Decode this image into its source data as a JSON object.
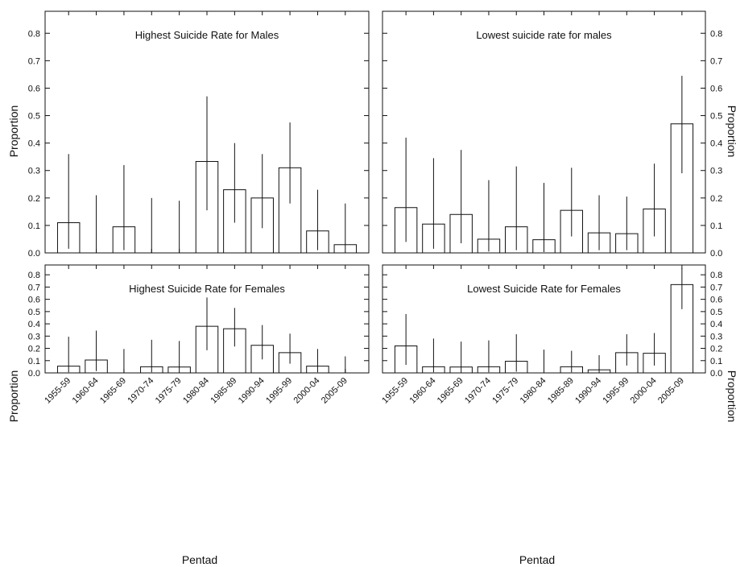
{
  "figure": {
    "left_ylabel": "Proportion",
    "right_ylabel": "Proportion",
    "xlabel": "Pentad"
  },
  "chart_data": [
    {
      "type": "bar",
      "title": "Highest Suicide Rate for Males",
      "categories": [
        "1955-59",
        "1960-64",
        "1965-69",
        "1970-74",
        "1975-79",
        "1980-84",
        "1985-89",
        "1990-94",
        "1995-99",
        "2000-04",
        "2005-09"
      ],
      "values": [
        0.11,
        0.0,
        0.095,
        0.0,
        0.0,
        0.333,
        0.23,
        0.2,
        0.31,
        0.08,
        0.03
      ],
      "error_low": [
        0.015,
        0.0,
        0.01,
        0.0,
        0.0,
        0.155,
        0.11,
        0.09,
        0.18,
        0.01,
        0.0
      ],
      "error_high": [
        0.36,
        0.21,
        0.32,
        0.2,
        0.19,
        0.57,
        0.4,
        0.36,
        0.475,
        0.23,
        0.18
      ],
      "ylim": [
        0,
        0.88
      ],
      "yticks": [
        0.0,
        0.1,
        0.2,
        0.3,
        0.4,
        0.5,
        0.6,
        0.7,
        0.8
      ],
      "ylabel": "Proportion",
      "xlabel": ""
    },
    {
      "type": "bar",
      "title": "Lowest suicide rate for males",
      "categories": [
        "1955-59",
        "1960-64",
        "1965-69",
        "1970-74",
        "1975-79",
        "1980-84",
        "1985-89",
        "1990-94",
        "1995-99",
        "2000-04",
        "2005-09"
      ],
      "values": [
        0.165,
        0.105,
        0.14,
        0.05,
        0.095,
        0.048,
        0.155,
        0.073,
        0.07,
        0.16,
        0.47
      ],
      "error_low": [
        0.04,
        0.015,
        0.035,
        0.005,
        0.01,
        0.003,
        0.06,
        0.01,
        0.01,
        0.06,
        0.29
      ],
      "error_high": [
        0.42,
        0.345,
        0.375,
        0.265,
        0.315,
        0.255,
        0.31,
        0.21,
        0.205,
        0.325,
        0.645
      ],
      "ylim": [
        0,
        0.88
      ],
      "yticks": [
        0.0,
        0.1,
        0.2,
        0.3,
        0.4,
        0.5,
        0.6,
        0.7,
        0.8
      ],
      "ylabel": "Proportion",
      "xlabel": ""
    },
    {
      "type": "bar",
      "title": "Highest Suicide Rate for Females",
      "categories": [
        "1955-59",
        "1960-64",
        "1965-69",
        "1970-74",
        "1975-79",
        "1980-84",
        "1985-89",
        "1990-94",
        "1995-99",
        "2000-04",
        "2005-09"
      ],
      "values": [
        0.055,
        0.105,
        0.0,
        0.05,
        0.048,
        0.38,
        0.36,
        0.225,
        0.165,
        0.055,
        0.0
      ],
      "error_low": [
        0.005,
        0.015,
        0.0,
        0.005,
        0.003,
        0.185,
        0.215,
        0.11,
        0.075,
        0.005,
        0.0
      ],
      "error_high": [
        0.295,
        0.345,
        0.195,
        0.27,
        0.26,
        0.615,
        0.53,
        0.39,
        0.32,
        0.195,
        0.135
      ],
      "ylim": [
        0,
        0.88
      ],
      "yticks": [
        0.0,
        0.1,
        0.2,
        0.3,
        0.4,
        0.5,
        0.6,
        0.7,
        0.8
      ],
      "ylabel": "Proportion",
      "xlabel": "Pentad"
    },
    {
      "type": "bar",
      "title": "Lowest Suicide Rate for Females",
      "categories": [
        "1955-59",
        "1960-64",
        "1965-69",
        "1970-74",
        "1975-79",
        "1980-84",
        "1985-89",
        "1990-94",
        "1995-99",
        "2000-04",
        "2005-09"
      ],
      "values": [
        0.22,
        0.05,
        0.048,
        0.05,
        0.095,
        0.0,
        0.05,
        0.025,
        0.165,
        0.16,
        0.72
      ],
      "error_low": [
        0.065,
        0.005,
        0.003,
        0.005,
        0.01,
        0.0,
        0.005,
        0.0,
        0.06,
        0.06,
        0.52
      ],
      "error_high": [
        0.48,
        0.28,
        0.255,
        0.265,
        0.315,
        0.19,
        0.18,
        0.145,
        0.315,
        0.325,
        0.855
      ],
      "ylim": [
        0,
        0.88
      ],
      "yticks": [
        0.0,
        0.1,
        0.2,
        0.3,
        0.4,
        0.5,
        0.6,
        0.7,
        0.8
      ],
      "ylabel": "Proportion",
      "xlabel": "Pentad"
    }
  ]
}
